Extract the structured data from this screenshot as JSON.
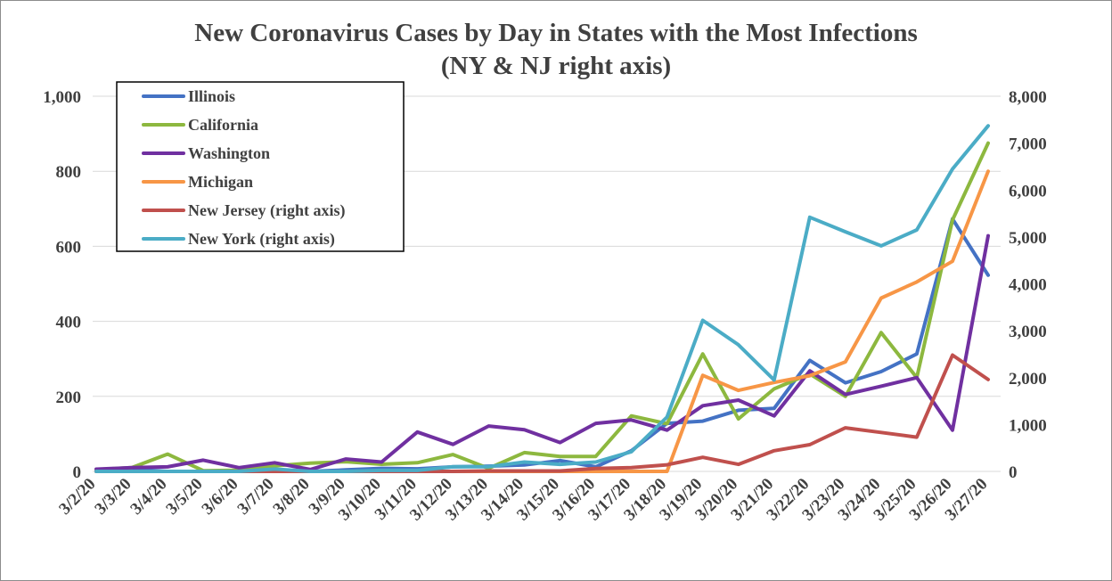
{
  "chart_data": {
    "type": "line",
    "title": "New Coronavirus Cases by Day in States with the Most Infections",
    "subtitle": "(NY & NJ right axis)",
    "categories": [
      "3/2/20",
      "3/3/20",
      "3/4/20",
      "3/5/20",
      "3/6/20",
      "3/7/20",
      "3/8/20",
      "3/9/20",
      "3/10/20",
      "3/11/20",
      "3/12/20",
      "3/13/20",
      "3/14/20",
      "3/15/20",
      "3/16/20",
      "3/17/20",
      "3/18/20",
      "3/19/20",
      "3/20/20",
      "3/21/20",
      "3/22/20",
      "3/23/20",
      "3/24/20",
      "3/25/20",
      "3/26/20",
      "3/27/20"
    ],
    "left_axis": {
      "ylim": [
        0,
        1000
      ],
      "ticks": [
        0,
        200,
        400,
        600,
        800,
        1000
      ],
      "tick_labels": [
        "0",
        "200",
        "400",
        "600",
        "800",
        "1,000"
      ]
    },
    "right_axis": {
      "ylim": [
        0,
        8000
      ],
      "ticks": [
        0,
        1000,
        2000,
        3000,
        4000,
        5000,
        6000,
        7000,
        8000
      ],
      "tick_labels": [
        "0",
        "1,000",
        "2,000",
        "3,000",
        "4,000",
        "5,000",
        "6,000",
        "7,000",
        "8,000"
      ]
    },
    "legend_position": "top-left",
    "series": [
      {
        "name": "Illinois",
        "axis": "left",
        "color": "#4472C4",
        "values": [
          2,
          5,
          0,
          0,
          1,
          3,
          0,
          4,
          8,
          7,
          12,
          14,
          17,
          29,
          12,
          55,
          128,
          134,
          163,
          168,
          296,
          236,
          266,
          313,
          673,
          523
        ]
      },
      {
        "name": "California",
        "axis": "left",
        "color": "#8DB83F",
        "values": [
          5,
          10,
          46,
          2,
          3,
          15,
          22,
          26,
          19,
          23,
          45,
          8,
          50,
          40,
          40,
          148,
          127,
          313,
          140,
          220,
          260,
          200,
          370,
          250,
          670,
          875
        ]
      },
      {
        "name": "Washington",
        "axis": "left",
        "color": "#7030A0",
        "values": [
          6,
          10,
          12,
          30,
          10,
          23,
          5,
          33,
          25,
          105,
          72,
          121,
          111,
          77,
          128,
          137,
          110,
          175,
          190,
          148,
          268,
          205,
          227,
          250,
          110,
          628
        ]
      },
      {
        "name": "Michigan",
        "axis": "left",
        "color": "#F79646",
        "values": [
          0,
          0,
          0,
          0,
          0,
          0,
          0,
          0,
          0,
          0,
          0,
          0,
          0,
          0,
          0,
          0,
          0,
          256,
          216,
          237,
          255,
          292,
          462,
          505,
          560,
          800
        ]
      },
      {
        "name": "New Jersey (right axis)",
        "axis": "right",
        "color": "#C0504D",
        "values": [
          0,
          0,
          0,
          0,
          0,
          0,
          0,
          0,
          0,
          0,
          0,
          10,
          10,
          10,
          60,
          80,
          140,
          300,
          150,
          440,
          570,
          930,
          830,
          730,
          2480,
          1960
        ]
      },
      {
        "name": "New York (right axis)",
        "axis": "right",
        "color": "#4BACC6",
        "values": [
          0,
          0,
          0,
          0,
          0,
          50,
          0,
          0,
          20,
          20,
          100,
          100,
          200,
          150,
          200,
          420,
          1160,
          3220,
          2700,
          1950,
          5420,
          5110,
          4810,
          5150,
          6450,
          7370
        ]
      }
    ]
  }
}
